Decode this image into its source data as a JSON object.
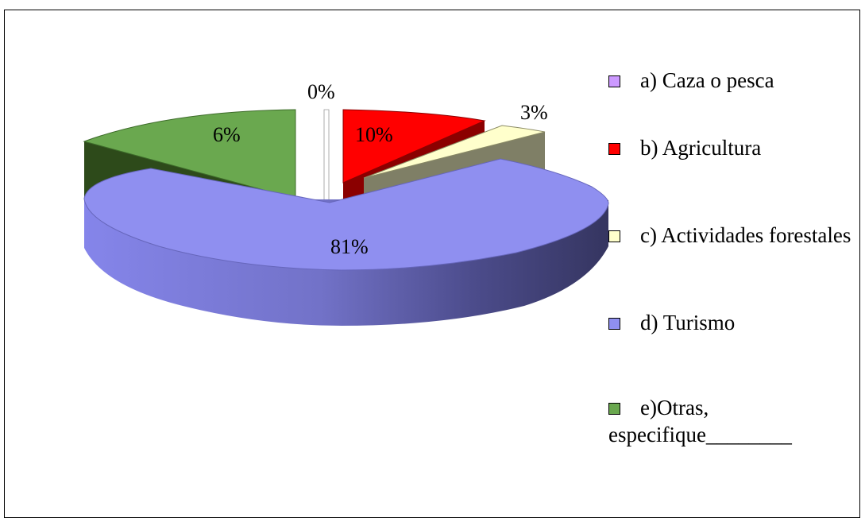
{
  "chart_data": {
    "type": "pie",
    "style": "3d-exploded",
    "legend_position": "right",
    "slices": [
      {
        "key": "a",
        "legend": "a) Caza o pesca",
        "value": 0,
        "label": "0%",
        "color": "#cc99ff"
      },
      {
        "key": "b",
        "legend": "b) Agricultura",
        "value": 10,
        "label": "10%",
        "color": "#ff0000"
      },
      {
        "key": "c",
        "legend": "c) Actividades forestales",
        "value": 3,
        "label": "3%",
        "color": "#ffffcc"
      },
      {
        "key": "d",
        "legend": "d) Turismo",
        "value": 81,
        "label": "81%",
        "color": "#8f8ff0"
      },
      {
        "key": "e",
        "legend": "e)Otras, especifique________",
        "value": 6,
        "label": "6%",
        "color": "#6aa84f"
      }
    ]
  }
}
